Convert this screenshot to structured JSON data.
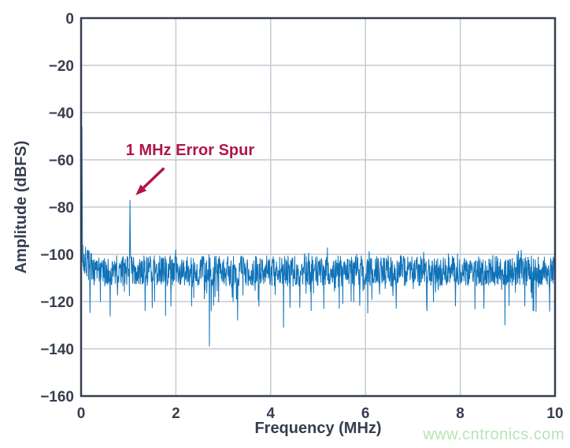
{
  "watermark": {
    "text": "www.cntronics.com",
    "color": "#b7e4b4"
  },
  "chart_data": {
    "type": "line",
    "title": "",
    "xlabel": "Frequency (MHz)",
    "ylabel": "Amplitude (dBFS)",
    "xlim": [
      0,
      10
    ],
    "ylim": [
      -160,
      0
    ],
    "xtick_values": [
      0,
      2,
      4,
      6,
      8,
      10
    ],
    "xtick_labels": [
      "0",
      "2",
      "4",
      "6",
      "8",
      "10"
    ],
    "ytick_values": [
      0,
      -20,
      -40,
      -60,
      -80,
      -100,
      -120,
      -140,
      -160
    ],
    "ytick_labels": [
      "0",
      "−20",
      "−40",
      "−60",
      "−80",
      "−100",
      "−120",
      "−140",
      "−160"
    ],
    "grid": true,
    "legend": null,
    "colors": {
      "axis": "#363e50",
      "grid": "#c5cad3",
      "trace": "#0f72b8",
      "annotation": "#b0154a"
    },
    "trace": {
      "points": 1600,
      "seed": 7,
      "noise_floor_mean_dbfs": -107,
      "noise_halfband_db": 6.5,
      "downward_spike_probability": 0.07,
      "downward_spike_extra_db": 14,
      "upward_spike_probability": 0.03,
      "upward_spike_extra_db": 6,
      "top_clamp_dbfs": -96,
      "near_dc_rise_db": 7,
      "near_dc_rise_span_mhz": 0.25
    },
    "features": {
      "dc_peak": {
        "freq_mhz": 0.02,
        "amplitude_dbfs": -46,
        "shoulder_dbfs": [
          -75,
          -80
        ]
      },
      "error_spur": {
        "freq_mhz": 1.03,
        "amplitude_dbfs": -77,
        "shoulder_dbfs": [
          -92,
          -94
        ]
      },
      "deep_nulls": [
        {
          "freq_mhz": 1.35,
          "amplitude_dbfs": -124
        },
        {
          "freq_mhz": 1.78,
          "amplitude_dbfs": -126
        },
        {
          "freq_mhz": 2.33,
          "amplitude_dbfs": -122
        },
        {
          "freq_mhz": 2.71,
          "amplitude_dbfs": -139
        },
        {
          "freq_mhz": 3.3,
          "amplitude_dbfs": -128
        },
        {
          "freq_mhz": 3.75,
          "amplitude_dbfs": -122
        },
        {
          "freq_mhz": 4.27,
          "amplitude_dbfs": -131
        },
        {
          "freq_mhz": 4.85,
          "amplitude_dbfs": -124
        },
        {
          "freq_mhz": 5.45,
          "amplitude_dbfs": -123
        },
        {
          "freq_mhz": 6.05,
          "amplitude_dbfs": -125
        },
        {
          "freq_mhz": 6.65,
          "amplitude_dbfs": -123
        },
        {
          "freq_mhz": 7.3,
          "amplitude_dbfs": -124
        },
        {
          "freq_mhz": 7.9,
          "amplitude_dbfs": -122
        },
        {
          "freq_mhz": 8.5,
          "amplitude_dbfs": -123
        },
        {
          "freq_mhz": 8.94,
          "amplitude_dbfs": -130
        },
        {
          "freq_mhz": 9.55,
          "amplitude_dbfs": -124
        }
      ]
    },
    "annotation": {
      "text": "1 MHz Error Spur",
      "text_center": {
        "freq_mhz": 2.3,
        "amplitude_dbfs": -58
      },
      "arrow_tail": {
        "freq_mhz": 1.75,
        "amplitude_dbfs": -63.5
      },
      "arrow_head": {
        "freq_mhz": 1.15,
        "amplitude_dbfs": -75
      }
    }
  }
}
